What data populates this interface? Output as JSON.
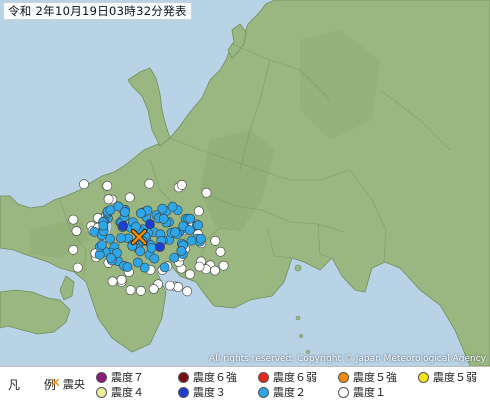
{
  "issue_time": "令和 2年10月19日03時32分発表",
  "copyright": "All rights reserved. Copyright © Japan Meteorological Agency",
  "legend": {
    "title": "凡 例",
    "epicenter_label": "震央",
    "items": [
      {
        "label": "震度７",
        "color": "#8a1a7c"
      },
      {
        "label": "震度６強",
        "color": "#7a0e16"
      },
      {
        "label": "震度６弱",
        "color": "#e8261e"
      },
      {
        "label": "震度５強",
        "color": "#f08c0a"
      },
      {
        "label": "震度５弱",
        "color": "#f5e41e"
      },
      {
        "label": "震度４",
        "color": "#ecec9a"
      },
      {
        "label": "震度３",
        "color": "#1d3fd1"
      },
      {
        "label": "震度２",
        "color": "#2ea6e8"
      },
      {
        "label": "震度１",
        "color": "#ffffff"
      }
    ]
  },
  "colors": {
    "sea": "#b9d3e6",
    "land": "#9bb781",
    "highland": "#8cab72",
    "coast": "#6f8d5a",
    "epicenter": "#f08c0a"
  },
  "observations": {
    "shindo_3": 3,
    "shindo_2": 95,
    "shindo_1": 55
  }
}
